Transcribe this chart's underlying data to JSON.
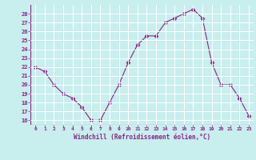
{
  "x": [
    0,
    1,
    2,
    3,
    4,
    5,
    6,
    7,
    8,
    9,
    10,
    11,
    12,
    13,
    14,
    15,
    16,
    17,
    18,
    19,
    20,
    21,
    22,
    23
  ],
  "y": [
    22,
    21.5,
    20,
    19,
    18.5,
    17.5,
    16,
    16,
    18,
    20,
    22.5,
    24.5,
    25.5,
    25.5,
    27,
    27.5,
    28,
    28.5,
    27.5,
    22.5,
    20,
    20,
    18.5,
    16.5
  ],
  "line_color": "#882288",
  "marker": "D",
  "marker_size": 2.5,
  "bg_color": "#c8eeee",
  "grid_color": "#aadddd",
  "xlabel": "Windchill (Refroidissement éolien,°C)",
  "xlabel_color": "#882288",
  "tick_color": "#882288",
  "ylim": [
    15.5,
    29.0
  ],
  "xlim": [
    -0.5,
    23.5
  ],
  "yticks": [
    16,
    17,
    18,
    19,
    20,
    21,
    22,
    23,
    24,
    25,
    26,
    27,
    28
  ],
  "xticks": [
    0,
    1,
    2,
    3,
    4,
    5,
    6,
    7,
    8,
    9,
    10,
    11,
    12,
    13,
    14,
    15,
    16,
    17,
    18,
    19,
    20,
    21,
    22,
    23
  ],
  "xtick_labels": [
    "0",
    "1",
    "2",
    "3",
    "4",
    "5",
    "6",
    "7",
    "8",
    "9",
    "10",
    "11",
    "12",
    "13",
    "14",
    "15",
    "16",
    "17",
    "18",
    "19",
    "20",
    "21",
    "22",
    "23"
  ]
}
